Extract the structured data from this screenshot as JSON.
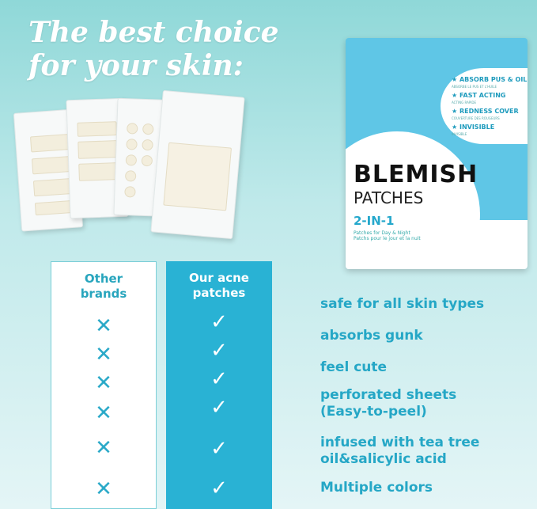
{
  "headline": [
    "The best choice",
    "for your skin:"
  ],
  "package": {
    "features": [
      {
        "en": "ABSORB PUS & OIL",
        "fr": "ABSORBE LE PUS ET L'HUILE"
      },
      {
        "en": "FAST ACTING",
        "fr": "ACTING RAPIDE"
      },
      {
        "en": "REDNESS COVER",
        "fr": "COUVERTURE DES ROUGEURS"
      },
      {
        "en": "INVISIBLE",
        "fr": "INVISIBLE"
      }
    ],
    "title": "BLEMISH",
    "subtitle": "PATCHES",
    "variant": "2-IN-1",
    "desc_en": "Patches for Day & Night",
    "desc_fr": "Patchs pour le jour et la nuit"
  },
  "comparison": {
    "other_header": "Other brands",
    "ours_header": "Our acne patches",
    "other_mark": "✕",
    "ours_mark": "✓",
    "features": [
      "safe for all skin types",
      "absorbs gunk",
      "feel cute",
      "perforated sheets (Easy-to-peel)",
      "infused with tea tree oil&salicylic acid",
      "Multiple colors"
    ]
  },
  "colors": {
    "accent": "#29b2d4",
    "text": "#25a7c6"
  }
}
